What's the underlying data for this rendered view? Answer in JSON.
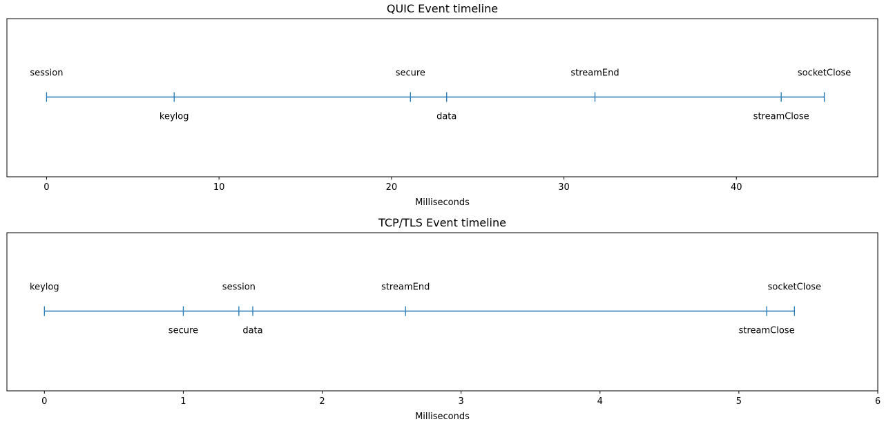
{
  "chart_data": [
    {
      "type": "line",
      "title": "QUIC Event timeline",
      "xlabel": "Milliseconds",
      "xlim": [
        -2.3,
        48.2
      ],
      "xticks": [
        0,
        10,
        20,
        30,
        40
      ],
      "line_color": "#1f77b4",
      "events": [
        {
          "name": "session",
          "x": 0.0,
          "label_pos": "above"
        },
        {
          "name": "keylog",
          "x": 7.4,
          "label_pos": "below"
        },
        {
          "name": "secure",
          "x": 21.1,
          "label_pos": "above"
        },
        {
          "name": "data",
          "x": 23.2,
          "label_pos": "below"
        },
        {
          "name": "streamEnd",
          "x": 31.8,
          "label_pos": "above"
        },
        {
          "name": "streamClose",
          "x": 42.6,
          "label_pos": "below"
        },
        {
          "name": "socketClose",
          "x": 45.1,
          "label_pos": "above"
        }
      ]
    },
    {
      "type": "line",
      "title": "TCP/TLS Event timeline",
      "xlabel": "Milliseconds",
      "xlim": [
        -0.27,
        6.0
      ],
      "xticks": [
        0,
        1,
        2,
        3,
        4,
        5,
        6
      ],
      "line_color": "#1f77b4",
      "events": [
        {
          "name": "keylog",
          "x": 0.0,
          "label_pos": "above"
        },
        {
          "name": "secure",
          "x": 1.0,
          "label_pos": "below"
        },
        {
          "name": "session",
          "x": 1.4,
          "label_pos": "above"
        },
        {
          "name": "data",
          "x": 1.5,
          "label_pos": "below"
        },
        {
          "name": "streamEnd",
          "x": 2.6,
          "label_pos": "above"
        },
        {
          "name": "streamClose",
          "x": 5.2,
          "label_pos": "below"
        },
        {
          "name": "socketClose",
          "x": 5.4,
          "label_pos": "above"
        }
      ]
    }
  ]
}
